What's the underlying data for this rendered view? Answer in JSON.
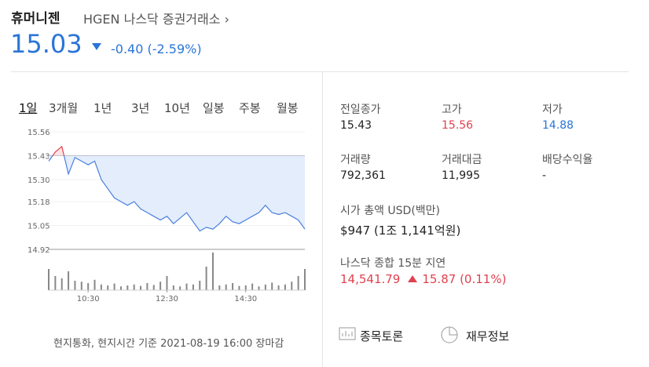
{
  "header": {
    "name": "휴머니젠",
    "ticker": "HGEN",
    "exchange": "나스닥 증권거래소",
    "price": "15.03",
    "change": "-0.40",
    "change_pct": "(-2.59%)"
  },
  "tabs": [
    "1일",
    "3개월",
    "1년",
    "3년",
    "10년",
    "일봉",
    "주봉",
    "월봉"
  ],
  "chart_data": {
    "type": "line",
    "color": "#4a7fe0",
    "above_color": "#e0424f",
    "reference": 15.43,
    "x": [
      "09:30",
      "09:40",
      "09:50",
      "10:00",
      "10:10",
      "10:20",
      "10:30",
      "10:40",
      "10:50",
      "11:00",
      "11:10",
      "11:20",
      "11:30",
      "11:40",
      "11:50",
      "12:00",
      "12:10",
      "12:20",
      "12:30",
      "12:40",
      "12:50",
      "13:00",
      "13:10",
      "13:20",
      "13:30",
      "13:40",
      "13:50",
      "14:00",
      "14:10",
      "14:20",
      "14:30",
      "14:40",
      "14:50",
      "15:00",
      "15:10",
      "15:20",
      "15:30",
      "15:40",
      "15:50",
      "16:00"
    ],
    "values": [
      15.4,
      15.45,
      15.48,
      15.33,
      15.42,
      15.4,
      15.38,
      15.4,
      15.3,
      15.25,
      15.2,
      15.18,
      15.16,
      15.18,
      15.14,
      15.12,
      15.1,
      15.08,
      15.1,
      15.06,
      15.09,
      15.12,
      15.07,
      15.02,
      15.04,
      15.03,
      15.06,
      15.1,
      15.07,
      15.06,
      15.08,
      15.1,
      15.12,
      15.16,
      15.12,
      15.11,
      15.12,
      15.1,
      15.08,
      15.03
    ],
    "volume": [
      45,
      30,
      25,
      40,
      20,
      18,
      15,
      22,
      12,
      10,
      14,
      8,
      10,
      12,
      9,
      15,
      11,
      18,
      30,
      10,
      8,
      14,
      12,
      20,
      50,
      80,
      10,
      12,
      15,
      9,
      10,
      14,
      8,
      12,
      16,
      10,
      12,
      18,
      30,
      45
    ],
    "ylim": [
      14.92,
      15.56
    ],
    "yticks": [
      15.56,
      15.43,
      {
        "value": 15.3,
        "label": "15.30"
      },
      15.18,
      15.05,
      14.92
    ],
    "xlim": [
      "09:30",
      "16:00"
    ],
    "xticks": [
      "10:30",
      "12:30",
      "14:30"
    ]
  },
  "footnote": "현지통화, 현지시간 기준 2021-08-19 16:00 장마감",
  "stats": [
    {
      "label": "전일종가",
      "value": "15.43"
    },
    {
      "label": "고가",
      "value": "15.56"
    },
    {
      "label": "저가",
      "value": "14.88"
    },
    {
      "label": "거래량",
      "value": "792,361"
    },
    {
      "label": "거래대금",
      "value": "11,995"
    },
    {
      "label": "배당수익율",
      "value": "-"
    }
  ],
  "market_cap": {
    "label": "시가 총액 USD(백만)",
    "value": "$947 (1조 1,141억원)"
  },
  "index": {
    "label": "나스닥 종합 15분 지연",
    "value": "14,541.79",
    "change": "15.87",
    "change_pct": "(0.11%)"
  },
  "links": [
    "종목토론",
    "재무정보"
  ]
}
